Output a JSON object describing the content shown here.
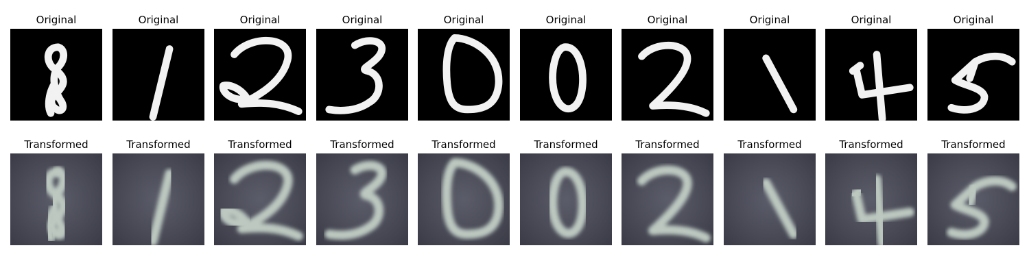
{
  "colors": {
    "original_background": "#000000",
    "original_stroke": "#f2f2f2",
    "transformed_background": "#4a4b58",
    "transformed_stroke": "#bcc8c0"
  },
  "rows": [
    {
      "kind": "original",
      "cells": [
        {
          "title": "Original",
          "digit": "8"
        },
        {
          "title": "Original",
          "digit": "1"
        },
        {
          "title": "Original",
          "digit": "2"
        },
        {
          "title": "Original",
          "digit": "3"
        },
        {
          "title": "Original",
          "digit": "0"
        },
        {
          "title": "Original",
          "digit": "0"
        },
        {
          "title": "Original",
          "digit": "2"
        },
        {
          "title": "Original",
          "digit": "1"
        },
        {
          "title": "Original",
          "digit": "4"
        },
        {
          "title": "Original",
          "digit": "5"
        }
      ]
    },
    {
      "kind": "transformed",
      "cells": [
        {
          "title": "Transformed",
          "digit": "8"
        },
        {
          "title": "Transformed",
          "digit": "1"
        },
        {
          "title": "Transformed",
          "digit": "2"
        },
        {
          "title": "Transformed",
          "digit": "3"
        },
        {
          "title": "Transformed",
          "digit": "0"
        },
        {
          "title": "Transformed",
          "digit": "0"
        },
        {
          "title": "Transformed",
          "digit": "2"
        },
        {
          "title": "Transformed",
          "digit": "1"
        },
        {
          "title": "Transformed",
          "digit": "4"
        },
        {
          "title": "Transformed",
          "digit": "5"
        }
      ]
    }
  ]
}
